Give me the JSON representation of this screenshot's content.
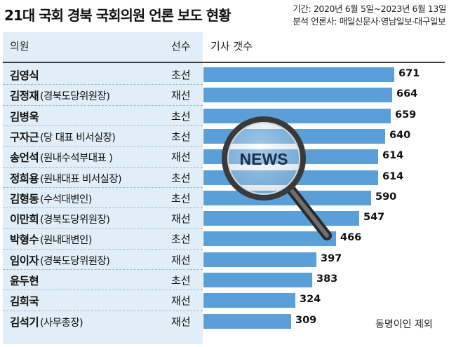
{
  "header": {
    "title": "21대 국회 경북 국회의원 언론 보도 현황",
    "period": "기간: 2020년 6월 5일~2023년 6월 13일",
    "outlets": "분석 언론사: 매일신문사·영남일보·대구일보"
  },
  "columns": {
    "member": "의원",
    "terms": "선수",
    "count": "기사 갯수"
  },
  "magnifier_text": "NEWS",
  "footnote": "동명이인 제외",
  "colors": {
    "bar": "#5a9fd8",
    "panel": "#e2eef7"
  },
  "chart_data": {
    "type": "bar",
    "orientation": "horizontal",
    "categories": [
      "김영식",
      "김정재",
      "김병욱",
      "구자근",
      "송언석",
      "정희용",
      "김형동",
      "이만희",
      "박형수",
      "임이자",
      "윤두현",
      "김희국",
      "김석기"
    ],
    "roles": [
      "",
      "(경북도당위원장)",
      "",
      "(당 대표 비서실장)",
      "(원내수석부대표 )",
      "(원내대표 비서실장)",
      "(수석대변인)",
      "(경북도당위원장)",
      "(원내대변인)",
      "(경북도당위원장)",
      "",
      "",
      "(사무총장)"
    ],
    "terms": [
      "초선",
      "재선",
      "초선",
      "초선",
      "재선",
      "초선",
      "초선",
      "재선",
      "초선",
      "재선",
      "초선",
      "재선",
      "재선"
    ],
    "values": [
      671,
      664,
      659,
      640,
      614,
      614,
      590,
      547,
      466,
      397,
      383,
      324,
      309
    ],
    "xlim": [
      0,
      700
    ],
    "grid": false,
    "legend": "none"
  }
}
